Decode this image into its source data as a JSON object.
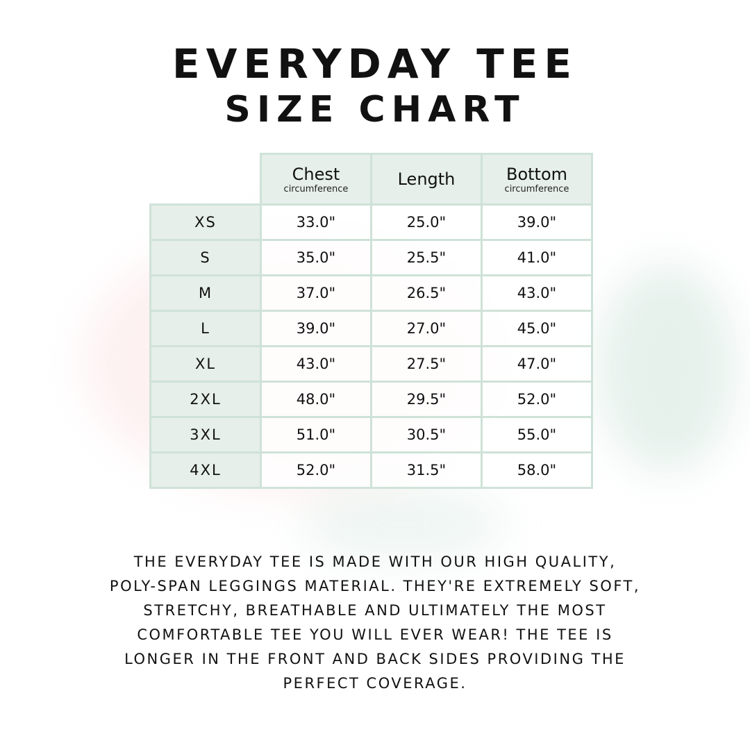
{
  "title": {
    "line1": "EVERYDAY TEE",
    "line2": "SIZE CHART"
  },
  "colors": {
    "border": "#cfe2d8",
    "header_bg": "#e6efea",
    "text": "#111111"
  },
  "table": {
    "headers": [
      {
        "main": "Chest",
        "sub": "circumference"
      },
      {
        "main": "Length",
        "sub": ""
      },
      {
        "main": "Bottom",
        "sub": "circumference"
      }
    ],
    "rows": [
      {
        "size": "XS",
        "values": [
          "33.0\"",
          "25.0\"",
          "39.0\""
        ]
      },
      {
        "size": "S",
        "values": [
          "35.0\"",
          "25.5\"",
          "41.0\""
        ]
      },
      {
        "size": "M",
        "values": [
          "37.0\"",
          "26.5\"",
          "43.0\""
        ]
      },
      {
        "size": "L",
        "values": [
          "39.0\"",
          "27.0\"",
          "45.0\""
        ]
      },
      {
        "size": "XL",
        "values": [
          "43.0\"",
          "27.5\"",
          "47.0\""
        ]
      },
      {
        "size": "2XL",
        "values": [
          "48.0\"",
          "29.5\"",
          "52.0\""
        ]
      },
      {
        "size": "3XL",
        "values": [
          "51.0\"",
          "30.5\"",
          "55.0\""
        ]
      },
      {
        "size": "4XL",
        "values": [
          "52.0\"",
          "31.5\"",
          "58.0\""
        ]
      }
    ]
  },
  "description": [
    "The Everyday Tee is made with our high quality,",
    "poly-span leggings material. They're extremely soft,",
    "stretchy, breathable and ultimately the most",
    "comfortable tee you will ever wear! The tee is",
    "longer in the front and back sides providing the",
    "perfect coverage."
  ]
}
